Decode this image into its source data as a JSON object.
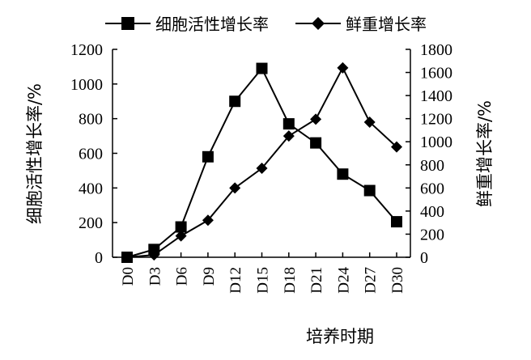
{
  "chart_data": {
    "type": "line",
    "categories": [
      "D0",
      "D3",
      "D6",
      "D9",
      "D12",
      "D15",
      "D18",
      "D21",
      "D24",
      "D27",
      "D30"
    ],
    "xlabel": "培养时期",
    "ylabel_left": "细胞活性增长率/%",
    "ylabel_right": "鲜重增长率/%",
    "ylim_left": [
      0,
      1200
    ],
    "ylim_right": [
      0,
      1800
    ],
    "yticks_left": [
      "0",
      "200",
      "400",
      "600",
      "800",
      "1000",
      "1200"
    ],
    "yticks_right": [
      "0",
      "200",
      "400",
      "600",
      "800",
      "1000",
      "1200",
      "1400",
      "1600",
      "1800"
    ],
    "grid": false,
    "legend_position": "top",
    "series": [
      {
        "name": "细胞活性增长率",
        "axis": "left",
        "marker": "square",
        "color": "#000000",
        "values": [
          0,
          45,
          175,
          580,
          900,
          1090,
          770,
          660,
          480,
          385,
          205
        ]
      },
      {
        "name": "鲜重增长率",
        "axis": "right",
        "marker": "diamond",
        "color": "#000000",
        "values": [
          0,
          20,
          185,
          320,
          600,
          770,
          1050,
          1195,
          1640,
          1170,
          955
        ]
      }
    ]
  }
}
